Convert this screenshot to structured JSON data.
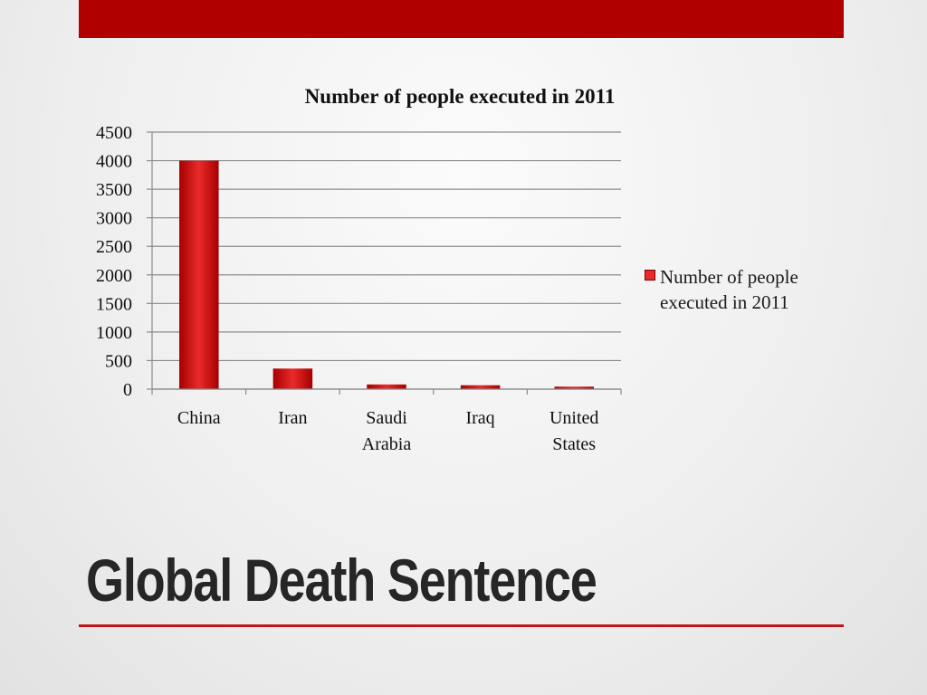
{
  "theme": {
    "accent": "#b00000",
    "bar_dark": "#a60000",
    "bar_light": "#ea2a2a",
    "rule": "#c0181a",
    "text": "#262626"
  },
  "slide": {
    "title": "Global Death Sentence"
  },
  "chart_data": {
    "type": "bar",
    "title": "Number of people executed in 2011",
    "categories": [
      "China",
      "Iran",
      "Saudi Arabia",
      "Iraq",
      "United States"
    ],
    "category_lines": [
      [
        "China"
      ],
      [
        "Iran"
      ],
      [
        "Saudi",
        "Arabia"
      ],
      [
        "Iraq"
      ],
      [
        "United",
        "States"
      ]
    ],
    "series": [
      {
        "name": "Number of people executed in 2011",
        "values": [
          4000,
          360,
          82,
          68,
          43
        ]
      }
    ],
    "ylim": [
      0,
      4500
    ],
    "yticks": [
      0,
      500,
      1000,
      1500,
      2000,
      2500,
      3000,
      3500,
      4000,
      4500
    ],
    "grid": true,
    "legend": "right"
  }
}
